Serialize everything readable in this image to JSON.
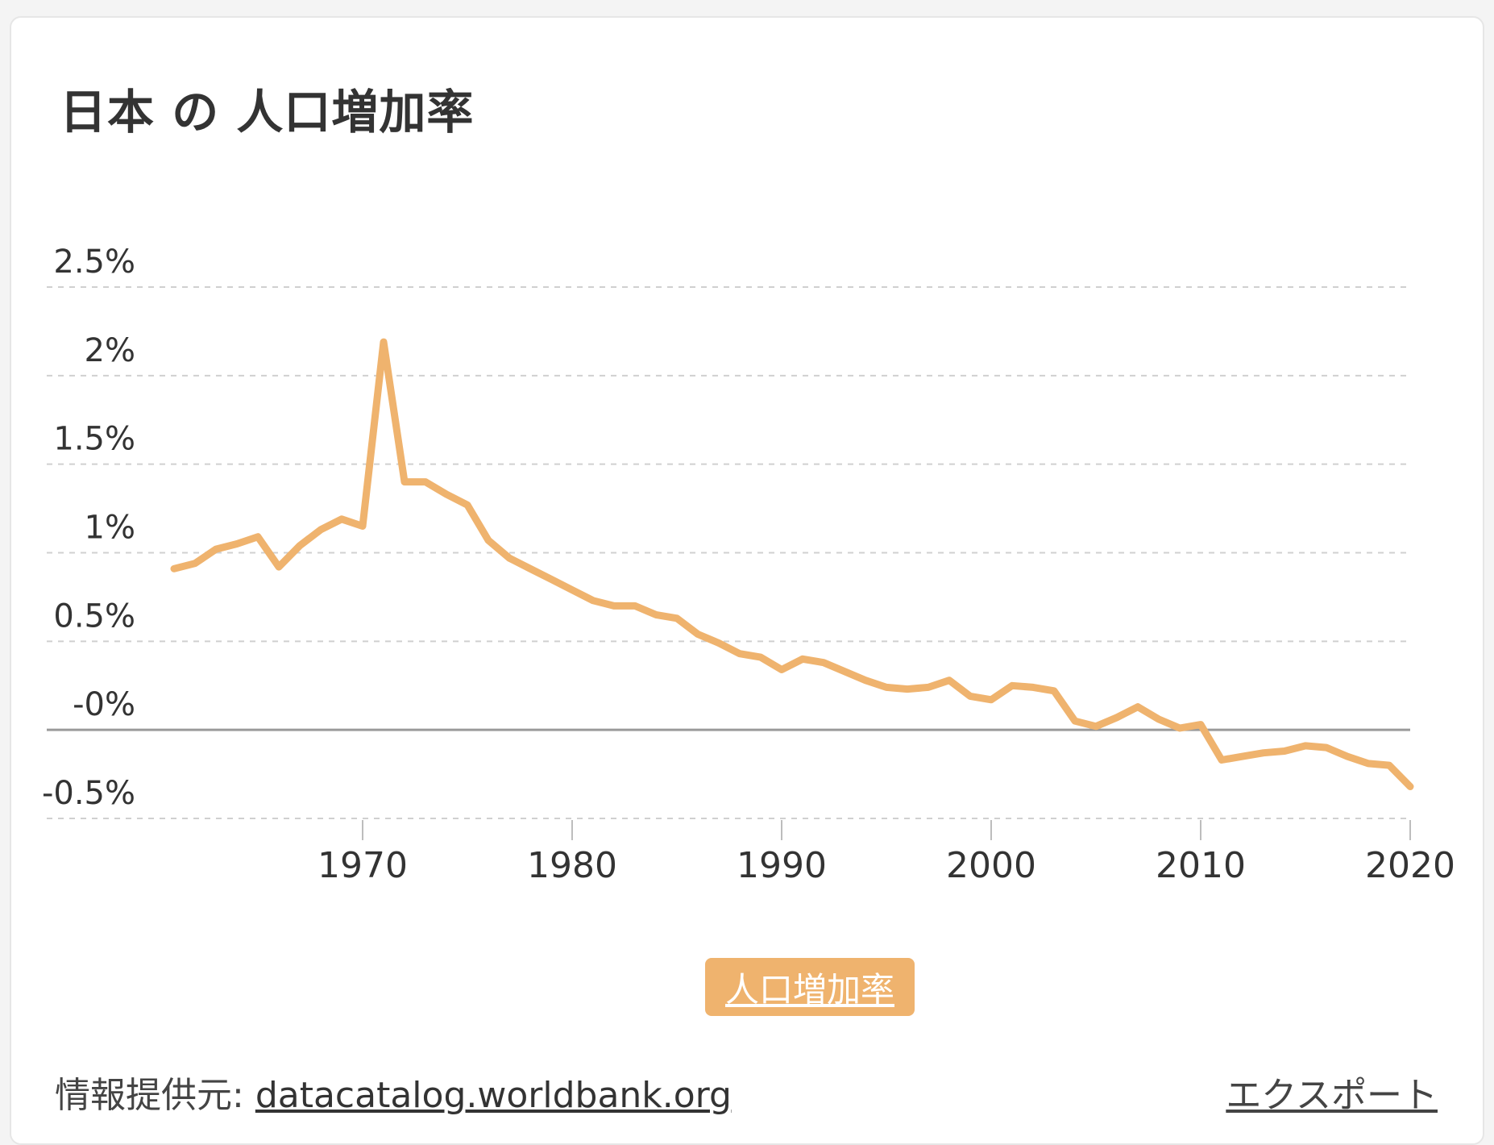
{
  "card": {
    "title": "日本 の 人口増加率",
    "legend_label": "人口増加率",
    "source_label": "情報提供元:",
    "source_link": "datacatalog.worldbank.org",
    "export_label": "エクスポート"
  },
  "chart_data": {
    "type": "line",
    "title": "日本 の 人口増加率",
    "xlabel": "",
    "ylabel": "",
    "xlim": [
      1955,
      2020
    ],
    "ylim": [
      -0.5,
      2.5
    ],
    "yticks": [
      2.5,
      2.0,
      1.5,
      1.0,
      0.5,
      0.0,
      -0.5
    ],
    "ytick_labels": [
      "2.5%",
      "2%",
      "1.5%",
      "1%",
      "0.5%",
      "-0%",
      "-0.5%"
    ],
    "xticks": [
      1970,
      1980,
      1990,
      2000,
      2010,
      2020
    ],
    "xtick_labels": [
      "1970",
      "1980",
      "1990",
      "2000",
      "2010",
      "2020"
    ],
    "grid": true,
    "legend_position": "bottom",
    "color": "#efb36e",
    "series": [
      {
        "name": "人口増加率",
        "x": [
          1961,
          1962,
          1963,
          1964,
          1965,
          1966,
          1967,
          1968,
          1969,
          1970,
          1971,
          1972,
          1973,
          1974,
          1975,
          1976,
          1977,
          1978,
          1979,
          1980,
          1981,
          1982,
          1983,
          1984,
          1985,
          1986,
          1987,
          1988,
          1989,
          1990,
          1991,
          1992,
          1993,
          1994,
          1995,
          1996,
          1997,
          1998,
          1999,
          2000,
          2001,
          2002,
          2003,
          2004,
          2005,
          2006,
          2007,
          2008,
          2009,
          2010,
          2011,
          2012,
          2013,
          2014,
          2015,
          2016,
          2017,
          2018,
          2019,
          2020
        ],
        "y": [
          0.91,
          0.94,
          1.02,
          1.05,
          1.09,
          0.92,
          1.04,
          1.13,
          1.19,
          1.15,
          2.19,
          1.4,
          1.4,
          1.33,
          1.27,
          1.07,
          0.97,
          0.91,
          0.85,
          0.79,
          0.73,
          0.7,
          0.7,
          0.65,
          0.63,
          0.54,
          0.49,
          0.43,
          0.41,
          0.34,
          0.4,
          0.38,
          0.33,
          0.28,
          0.24,
          0.23,
          0.24,
          0.28,
          0.19,
          0.17,
          0.25,
          0.24,
          0.22,
          0.05,
          0.02,
          0.07,
          0.13,
          0.06,
          0.01,
          0.03,
          -0.17,
          -0.15,
          -0.13,
          -0.12,
          -0.09,
          -0.1,
          -0.15,
          -0.19,
          -0.2,
          -0.32
        ]
      }
    ]
  }
}
